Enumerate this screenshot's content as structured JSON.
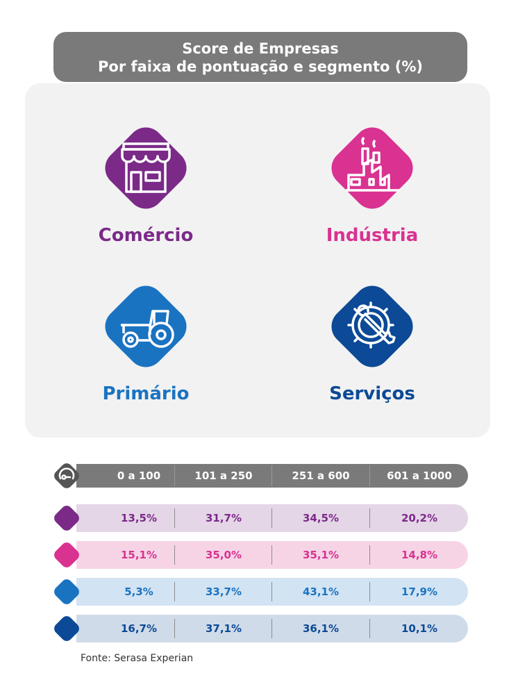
{
  "title": {
    "line1": "Score de Empresas",
    "line2": "Por faixa de pontuação e segmento (%)"
  },
  "colors": {
    "comercio": "#7b2a88",
    "industria": "#d93291",
    "primario": "#1a73c1",
    "servicos": "#0c4996",
    "comercio_light": "#e4d5e7",
    "industria_light": "#f6d4e6",
    "primario_light": "#d2e3f3",
    "servicos_light": "#d0dbe9",
    "header": "#7a7a7a"
  },
  "segments": [
    {
      "name": "Comércio",
      "icon": "store-icon"
    },
    {
      "name": "Indústria",
      "icon": "factory-icon"
    },
    {
      "name": "Primário",
      "icon": "tractor-icon"
    },
    {
      "name": "Serviços",
      "icon": "gear-wrench-icon"
    }
  ],
  "chart_data": {
    "type": "table",
    "columns": [
      "0 a 100",
      "101 a 250",
      "251 a 600",
      "601 a 1000"
    ],
    "rows": [
      {
        "segment": "Comércio",
        "values": [
          "13,5%",
          "31,7%",
          "34,5%",
          "20,2%"
        ]
      },
      {
        "segment": "Indústria",
        "values": [
          "15,1%",
          "35,0%",
          "35,1%",
          "14,8%"
        ]
      },
      {
        "segment": "Primário",
        "values": [
          "5,3%",
          "33,7%",
          "43,1%",
          "17,9%"
        ]
      },
      {
        "segment": "Serviços",
        "values": [
          "16,7%",
          "37,1%",
          "36,1%",
          "10,1%"
        ]
      }
    ]
  },
  "source": "Fonte: Serasa Experian"
}
